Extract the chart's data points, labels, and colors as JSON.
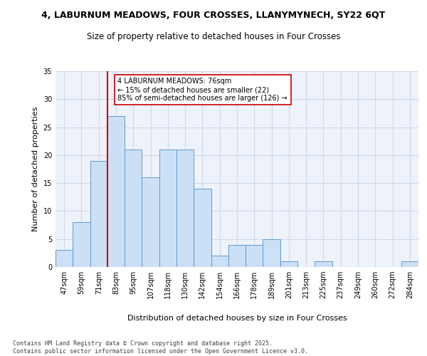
{
  "title_line1": "4, LABURNUM MEADOWS, FOUR CROSSES, LLANYMYNECH, SY22 6QT",
  "title_line2": "Size of property relative to detached houses in Four Crosses",
  "xlabel": "Distribution of detached houses by size in Four Crosses",
  "ylabel": "Number of detached properties",
  "categories": [
    "47sqm",
    "59sqm",
    "71sqm",
    "83sqm",
    "95sqm",
    "107sqm",
    "118sqm",
    "130sqm",
    "142sqm",
    "154sqm",
    "166sqm",
    "178sqm",
    "189sqm",
    "201sqm",
    "213sqm",
    "225sqm",
    "237sqm",
    "249sqm",
    "260sqm",
    "272sqm",
    "284sqm"
  ],
  "values": [
    3,
    8,
    19,
    27,
    21,
    16,
    21,
    21,
    14,
    2,
    4,
    4,
    5,
    1,
    0,
    1,
    0,
    0,
    0,
    0,
    1
  ],
  "bar_color": "#cce0f5",
  "bar_edge_color": "#5b9bd5",
  "grid_color": "#d0d8e8",
  "background_color": "#eef2fa",
  "vline_x_index": 2,
  "vline_color": "#cc0000",
  "annotation_text": "4 LABURNUM MEADOWS: 76sqm\n← 15% of detached houses are smaller (22)\n85% of semi-detached houses are larger (126) →",
  "annotation_box_color": "#ffffff",
  "annotation_box_edge": "#cc0000",
  "ylim": [
    0,
    35
  ],
  "yticks": [
    0,
    5,
    10,
    15,
    20,
    25,
    30,
    35
  ],
  "footnote": "Contains HM Land Registry data © Crown copyright and database right 2025.\nContains public sector information licensed under the Open Government Licence v3.0.",
  "title_fontsize": 9,
  "subtitle_fontsize": 8.5,
  "axis_label_fontsize": 8,
  "tick_fontsize": 7,
  "annotation_fontsize": 7,
  "footnote_fontsize": 6
}
